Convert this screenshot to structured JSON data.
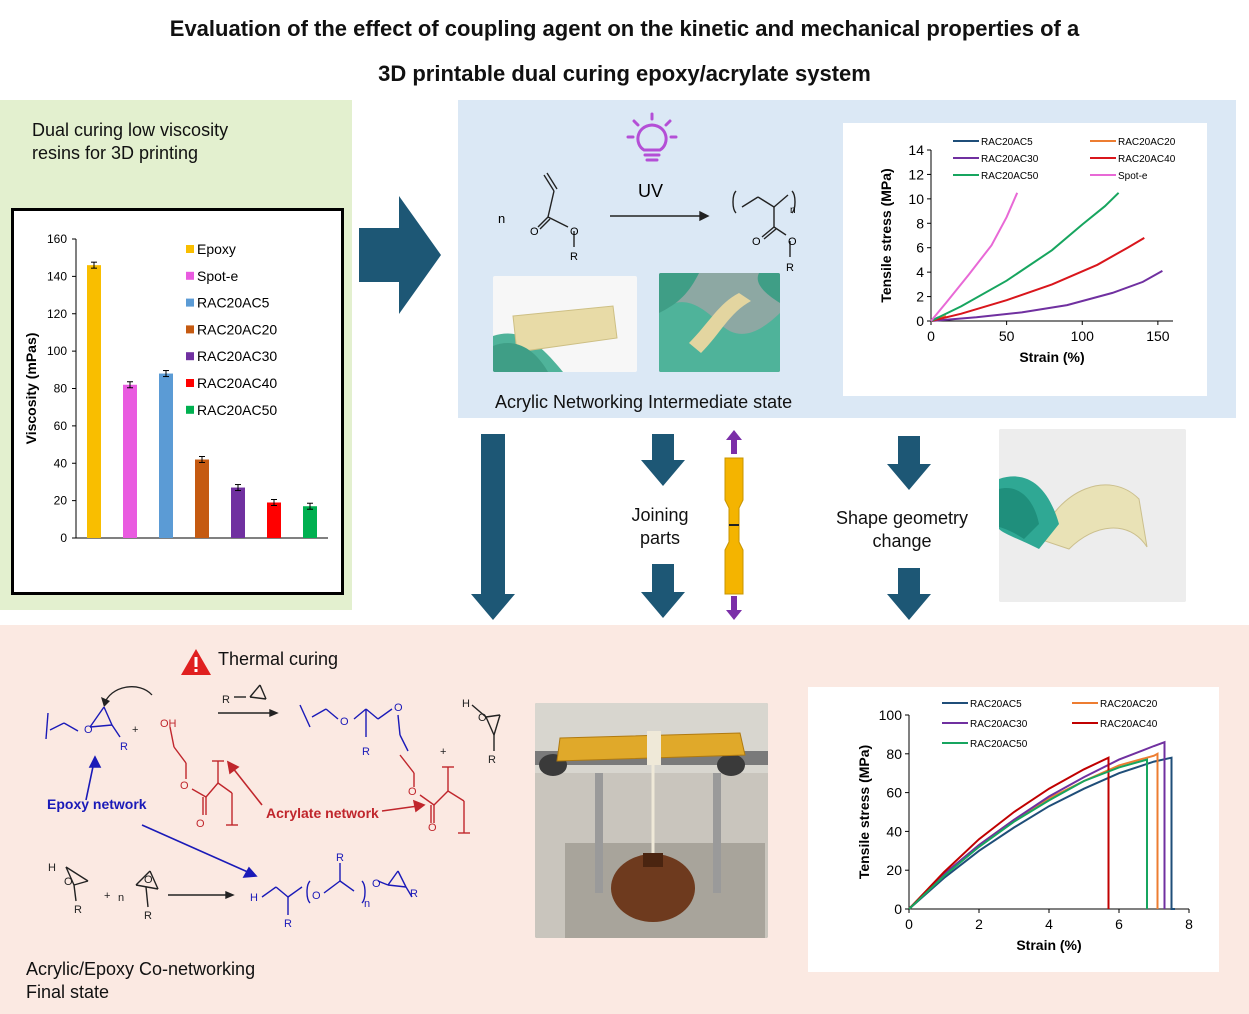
{
  "title": {
    "line1": "Evaluation of the effect of coupling agent on the kinetic and mechanical properties of a",
    "line2": "3D printable dual curing epoxy/acrylate system"
  },
  "green_panel": {
    "caption_line1": "Dual curing low viscosity",
    "caption_line2": "resins for 3D printing"
  },
  "blue_panel": {
    "uv_label": "UV",
    "n_label": "n",
    "r_label": "R",
    "o_label": "O",
    "poly_n_label": "n",
    "state_label": "Acrylic Networking Intermediate state"
  },
  "middle": {
    "joining_line1": "Joining",
    "joining_line2": "parts",
    "shape_line1": "Shape geometry",
    "shape_line2": "change"
  },
  "pink_panel": {
    "thermal_label": "Thermal curing",
    "epoxy_network": "Epoxy network",
    "acrylate_network": "Acrylate network",
    "final_line1": "Acrylic/Epoxy Co-networking",
    "final_line2": "Final state",
    "plus": "+",
    "n": "n",
    "R": "R",
    "OH": "OH",
    "O": "O",
    "H": "H",
    "Rminus": "R"
  },
  "colors": {
    "green_panel": "#e3f0cf",
    "blue_panel": "#dbe8f5",
    "pink_panel": "#fbe9e2",
    "arrow": "#1d5775",
    "epoxy_blue": "#1a1ab8",
    "acrylate_red": "#c0262c",
    "dogbone": "#f4b400",
    "dogbone_arrow": "#7b2fa8"
  },
  "chart_data": [
    {
      "type": "bar",
      "title": "",
      "xlabel": "",
      "ylabel": "Viscosity (mPas)",
      "ylim": [
        0,
        160
      ],
      "yticks": [
        0,
        20,
        40,
        60,
        80,
        100,
        120,
        140,
        160
      ],
      "categories": [
        "Epoxy",
        "Spot-e",
        "RAC20AC5",
        "RAC20AC20",
        "RAC20AC30",
        "RAC20AC40",
        "RAC20AC50"
      ],
      "values": [
        146,
        82,
        88,
        42,
        27,
        19,
        17
      ],
      "colors": [
        "#f9be00",
        "#e95be0",
        "#5b9bd5",
        "#c55a11",
        "#7030a0",
        "#ff0000",
        "#00b050"
      ],
      "legend": "right",
      "grid": false
    },
    {
      "type": "line",
      "title": "",
      "xlabel": "Strain (%)",
      "ylabel": "Tensile stress (MPa)",
      "xlim": [
        0,
        160
      ],
      "ylim": [
        0,
        14
      ],
      "xticks": [
        0,
        50,
        100,
        150
      ],
      "yticks": [
        0,
        2,
        4,
        6,
        8,
        10,
        12,
        14
      ],
      "legend": "top",
      "grid": false,
      "series": [
        {
          "name": "RAC20AC5",
          "color": "#1f4e79",
          "x": [
            0,
            5
          ],
          "y": [
            0,
            0.3
          ]
        },
        {
          "name": "RAC20AC20",
          "color": "#ed7d31",
          "x": [
            0,
            10
          ],
          "y": [
            0,
            0.4
          ]
        },
        {
          "name": "RAC20AC30",
          "color": "#7030a0",
          "x": [
            0,
            30,
            60,
            90,
            120,
            140,
            153
          ],
          "y": [
            0,
            0.3,
            0.7,
            1.3,
            2.3,
            3.2,
            4.1
          ]
        },
        {
          "name": "RAC20AC40",
          "color": "#d9161c",
          "x": [
            0,
            20,
            50,
            80,
            110,
            130,
            141
          ],
          "y": [
            0,
            0.6,
            1.7,
            3.0,
            4.6,
            6.0,
            6.8
          ]
        },
        {
          "name": "RAC20AC50",
          "color": "#17a55f",
          "x": [
            0,
            20,
            50,
            80,
            100,
            115,
            124
          ],
          "y": [
            0,
            1.2,
            3.3,
            5.8,
            7.9,
            9.4,
            10.5
          ]
        },
        {
          "name": "Spot-e",
          "color": "#e869d6",
          "x": [
            0,
            10,
            25,
            40,
            50,
            57
          ],
          "y": [
            0,
            1.5,
            3.8,
            6.2,
            8.5,
            10.5
          ]
        }
      ]
    },
    {
      "type": "line",
      "title": "",
      "xlabel": "Strain (%)",
      "ylabel": "Tensile stress (MPa)",
      "xlim": [
        0,
        8
      ],
      "ylim": [
        0,
        100
      ],
      "xticks": [
        0,
        2,
        4,
        6,
        8
      ],
      "yticks": [
        0,
        20,
        40,
        60,
        80,
        100
      ],
      "legend": "top",
      "grid": false,
      "series": [
        {
          "name": "RAC20AC5",
          "color": "#1f4e79",
          "x": [
            0,
            1,
            2,
            3,
            4,
            5,
            6,
            7,
            7.5,
            7.5,
            7.6
          ],
          "y": [
            0,
            16,
            30,
            42,
            53,
            62,
            70,
            76,
            78,
            0,
            0
          ]
        },
        {
          "name": "RAC20AC20",
          "color": "#ed7d31",
          "x": [
            0,
            1,
            2,
            3,
            4,
            5,
            6,
            7,
            7.1,
            7.1
          ],
          "y": [
            0,
            18,
            33,
            46,
            57,
            66,
            74,
            79,
            80,
            0
          ]
        },
        {
          "name": "RAC20AC30",
          "color": "#7030a0",
          "x": [
            0,
            1,
            2,
            3,
            4,
            5,
            6,
            7,
            7.3,
            7.3
          ],
          "y": [
            0,
            18,
            33,
            46,
            58,
            68,
            77,
            84,
            86,
            0
          ]
        },
        {
          "name": "RAC20AC40",
          "color": "#c00000",
          "x": [
            0,
            1,
            2,
            3,
            4,
            5,
            5.7,
            5.7
          ],
          "y": [
            0,
            19,
            36,
            50,
            62,
            72,
            78,
            0
          ]
        },
        {
          "name": "RAC20AC50",
          "color": "#17a55f",
          "x": [
            0,
            1,
            2,
            3,
            4,
            5,
            6,
            6.8,
            6.8
          ],
          "y": [
            0,
            17,
            32,
            45,
            56,
            66,
            73,
            77,
            0
          ]
        }
      ]
    }
  ]
}
